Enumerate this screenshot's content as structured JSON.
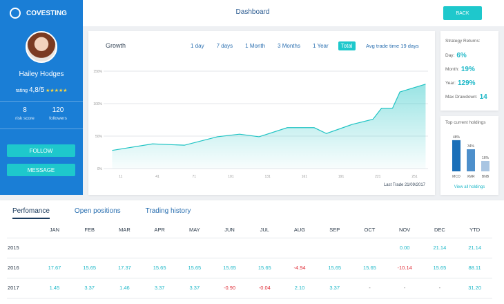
{
  "header": {
    "logo": "COVESTING",
    "title": "Dashboard",
    "back": "BACK"
  },
  "profile": {
    "name": "Hailey Hodges",
    "rating_label": "rating",
    "rating": "4,8/5",
    "stars": "★★★★★",
    "stats": [
      {
        "value": "8",
        "label": "risk score"
      },
      {
        "value": "120",
        "label": "followers"
      }
    ],
    "buttons": [
      "FOLLOW",
      "MESSAGE"
    ]
  },
  "growth": {
    "type": "line",
    "title": "Growth",
    "ranges": [
      "1 day",
      "7 days",
      "1 Month",
      "3 Months",
      "1 Year",
      "Total"
    ],
    "active_range": 5,
    "avg_trade_time": "Avg trade time 19 days",
    "last_trade": "Last Trade 21/09/2017",
    "color": "#1ec3c3",
    "x": [
      4,
      37,
      63,
      90,
      108,
      124,
      147,
      169,
      179,
      200,
      217,
      224,
      233,
      239,
      260
    ],
    "values": [
      28,
      38,
      36,
      49,
      53,
      49,
      63,
      63,
      54,
      68,
      76,
      93,
      93,
      118,
      130
    ],
    "xlim": [
      -3,
      262
    ],
    "xticks": [
      11,
      41,
      71,
      101,
      131,
      161,
      191,
      221,
      251
    ],
    "ylim": [
      0,
      150
    ],
    "yticks": [
      {
        "value": 0,
        "label": "0%"
      },
      {
        "value": 50,
        "label": "50%"
      },
      {
        "value": 100,
        "label": "100%"
      },
      {
        "value": 150,
        "label": "150%"
      }
    ],
    "grid": true
  },
  "strategy_returns": {
    "title": "Strategy Returns:",
    "items": [
      {
        "label": "Day:",
        "value": "6%"
      },
      {
        "label": "Month:",
        "value": "19%"
      },
      {
        "label": "Year:",
        "value": "129%"
      },
      {
        "label": "Max Drawdown:",
        "value": "14"
      }
    ]
  },
  "holdings": {
    "type": "bar",
    "title": "Top current holdings",
    "categories": [
      "MCO",
      "XMR",
      "BNB"
    ],
    "values": [
      48,
      34,
      16
    ],
    "value_labels": [
      "48%",
      "34%",
      "16%"
    ],
    "colors": [
      "#1a6fb8",
      "#4d8fcb",
      "#a9c5e2"
    ],
    "ylim": [
      0,
      50
    ],
    "link": "View all holdings"
  },
  "tabs": {
    "items": [
      "Perfomance",
      "Open positions",
      "Trading history"
    ],
    "active": 0
  },
  "table": {
    "columns": [
      "JAN",
      "FEB",
      "MAR",
      "APR",
      "MAY",
      "JUN",
      "JUL",
      "AUG",
      "SEP",
      "OCT",
      "NOV",
      "DEC",
      "YTD"
    ],
    "rows": [
      {
        "year": "2015",
        "cells": [
          null,
          null,
          null,
          null,
          null,
          null,
          null,
          null,
          null,
          null,
          "0.00",
          "21.14",
          "21.14"
        ]
      },
      {
        "year": "2016",
        "cells": [
          "17.67",
          "15.65",
          "17.37",
          "15.65",
          "15.65",
          "15.65",
          "15.65",
          "-4.94",
          "15.65",
          "15.65",
          "-10.14",
          "15.65",
          "88.11"
        ]
      },
      {
        "year": "2017",
        "cells": [
          "1.45",
          "3.37",
          "1.46",
          "3.37",
          "3.37",
          "-0.90",
          "-0.04",
          "2.10",
          "3.37",
          "-",
          "-",
          "-",
          "31.20"
        ]
      }
    ]
  }
}
